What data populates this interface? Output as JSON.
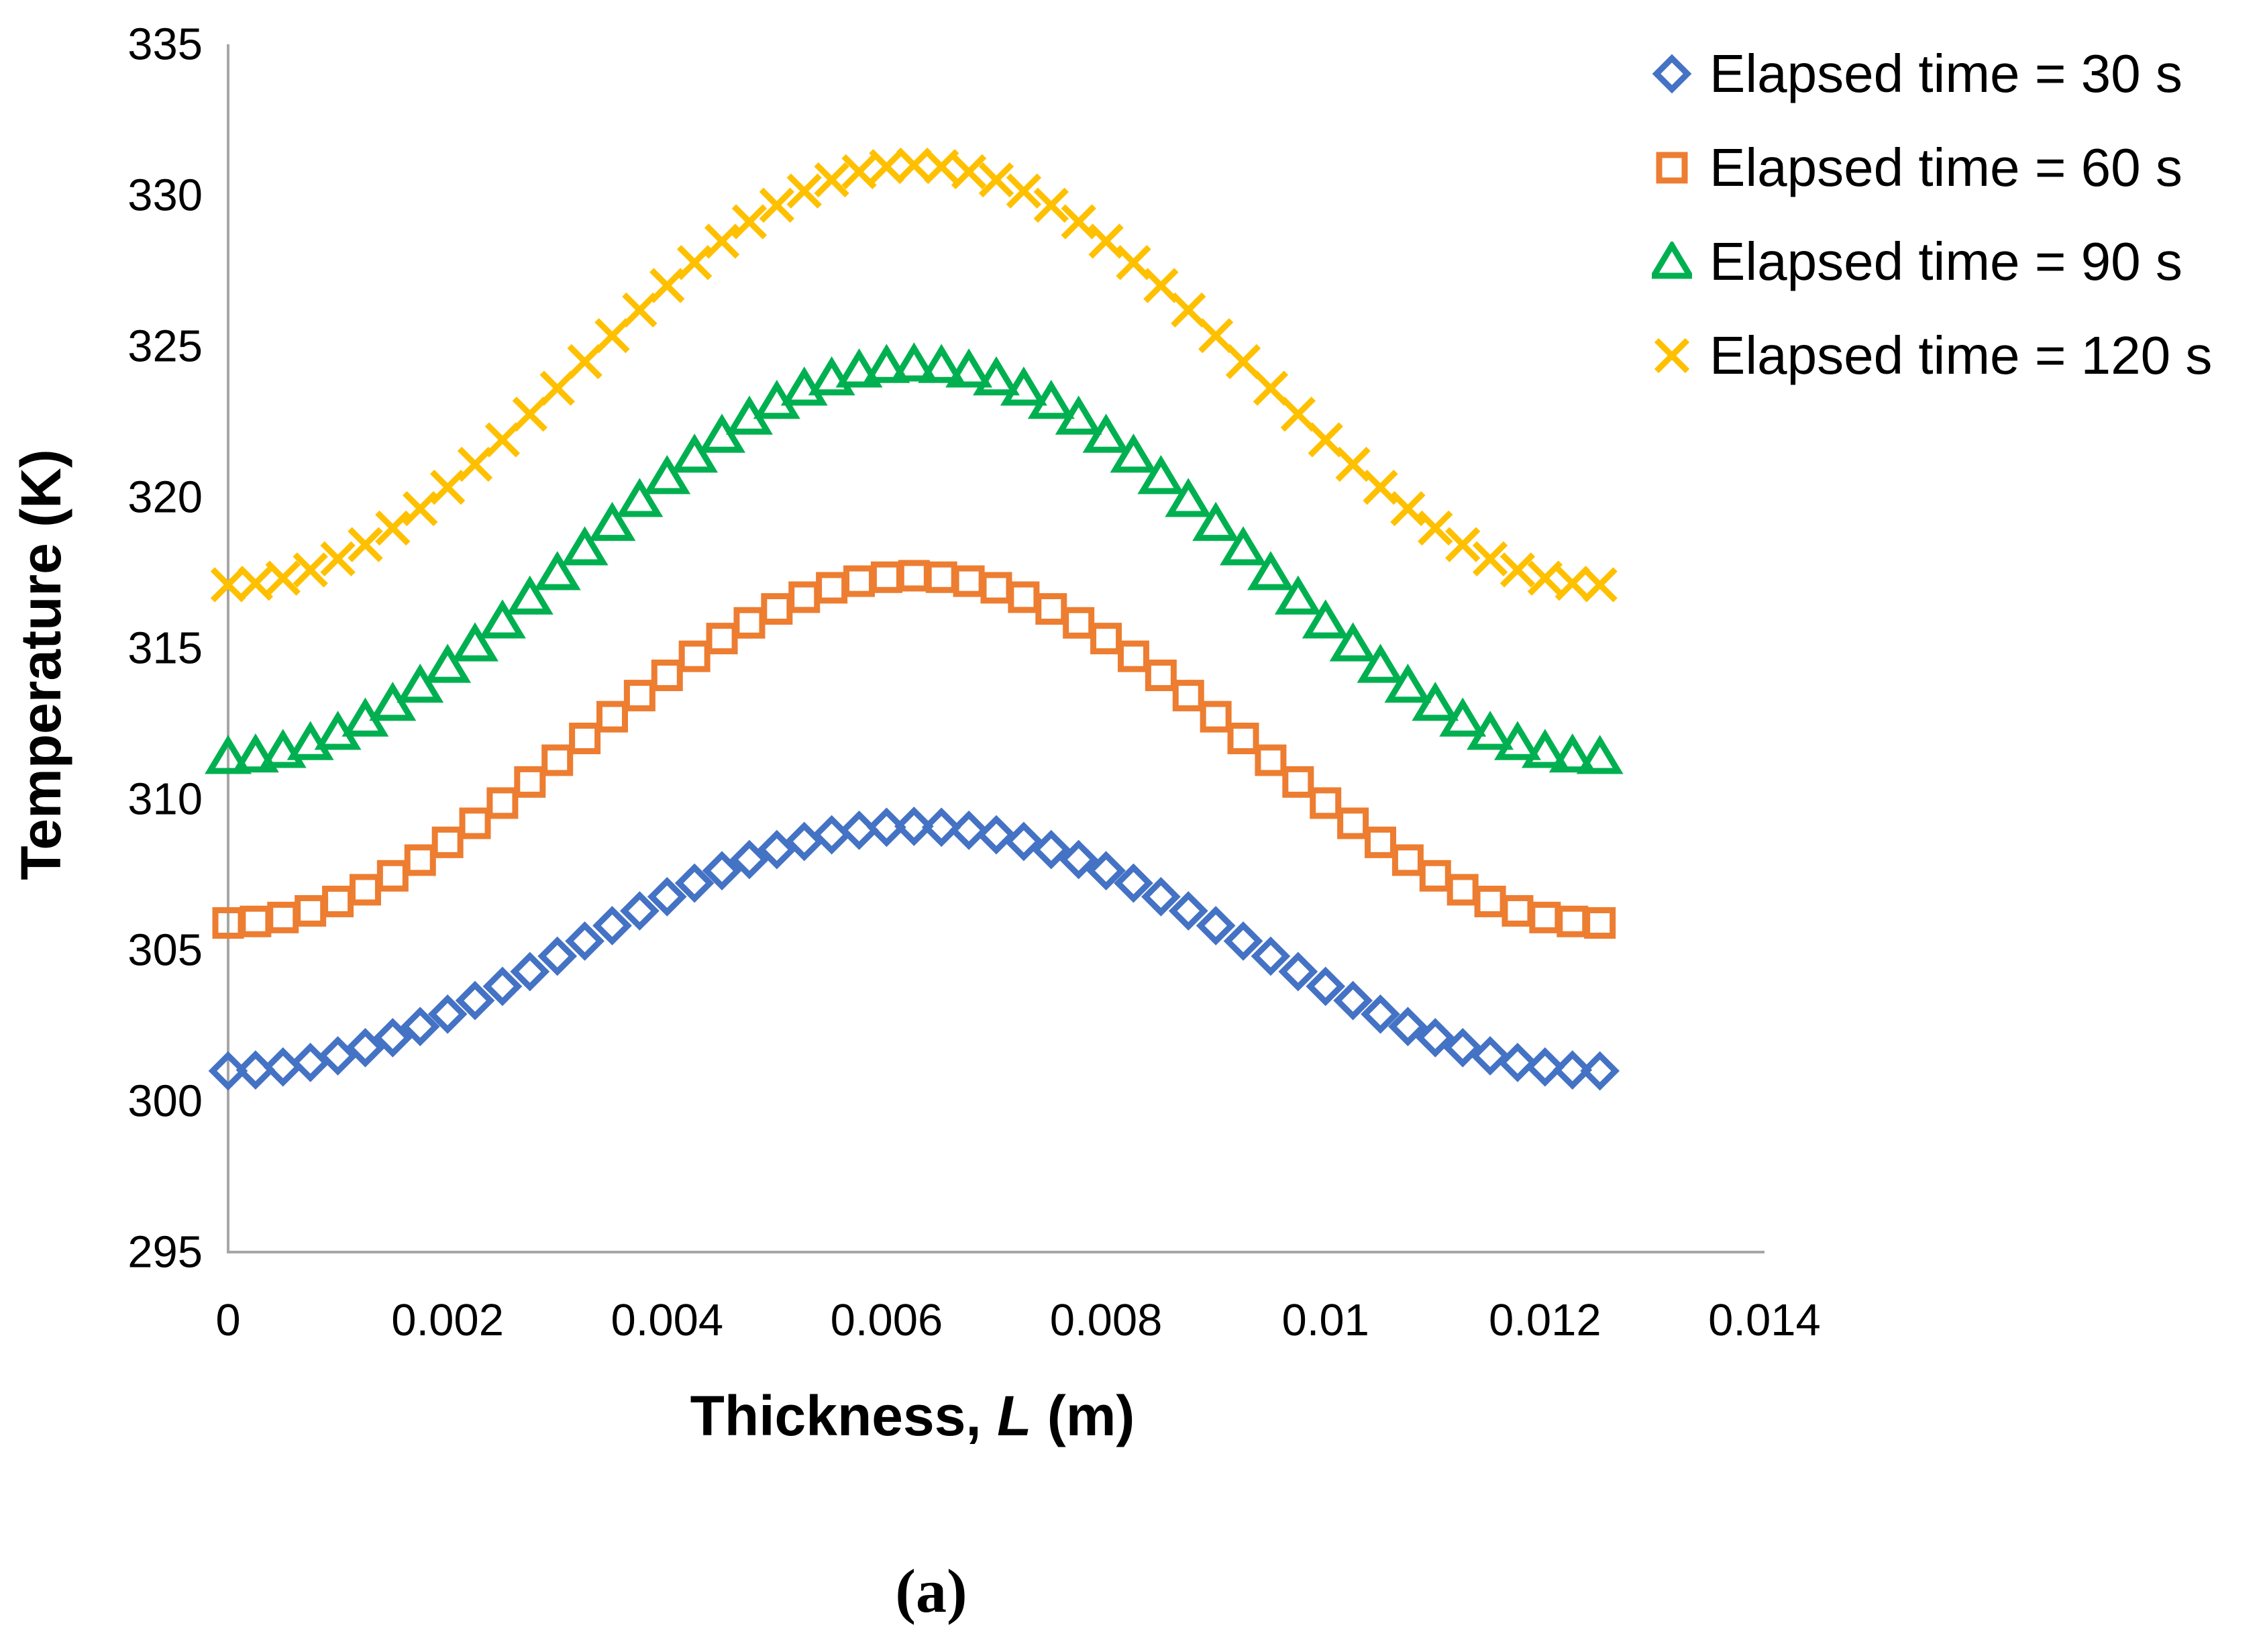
{
  "figure": {
    "caption": "(a)"
  },
  "chart_data": {
    "type": "scatter",
    "title": "",
    "xlabel": "Thickness, L (m)",
    "xlabel_parts": {
      "prefix": "Thickness, ",
      "italic": "L",
      "suffix": " (m)"
    },
    "ylabel": "Temperature (K)",
    "xlim": [
      0,
      0.014
    ],
    "ylim": [
      295,
      335
    ],
    "x_tick_step": 0.002,
    "y_tick_step": 5,
    "grid": false,
    "legend_position": "top-right",
    "axis_color": "#A6A6A6",
    "text_color": "#000000",
    "x": [
      0,
      0.00025,
      0.0005,
      0.00075,
      0.001,
      0.00125,
      0.0015,
      0.00175,
      0.002,
      0.00225,
      0.0025,
      0.00275,
      0.003,
      0.00325,
      0.0035,
      0.00375,
      0.004,
      0.00425,
      0.0045,
      0.00475,
      0.005,
      0.00525,
      0.0055,
      0.00575,
      0.006,
      0.00625,
      0.0065,
      0.00675,
      0.007,
      0.00725,
      0.0075,
      0.00775,
      0.008,
      0.00825,
      0.0085,
      0.00875,
      0.009,
      0.00925,
      0.0095,
      0.00975,
      0.01,
      0.01025,
      0.0105,
      0.01075,
      0.011,
      0.01125,
      0.0115,
      0.01175,
      0.012,
      0.01225,
      0.0125
    ],
    "series": [
      {
        "name": "Elapsed time = 30 s",
        "marker": "diamond",
        "color": "#4472C4",
        "values": [
          301.0,
          301.03,
          301.13,
          301.28,
          301.5,
          301.77,
          302.1,
          302.47,
          302.88,
          303.33,
          303.8,
          304.29,
          304.8,
          305.3,
          305.81,
          306.3,
          306.77,
          307.22,
          307.63,
          308.0,
          308.33,
          308.6,
          308.82,
          308.97,
          309.07,
          309.1,
          309.07,
          308.97,
          308.82,
          308.6,
          308.33,
          308.0,
          307.63,
          307.22,
          306.77,
          306.3,
          305.81,
          305.3,
          304.8,
          304.29,
          303.8,
          303.33,
          302.88,
          302.47,
          302.1,
          301.77,
          301.5,
          301.28,
          301.13,
          301.03,
          301.0
        ]
      },
      {
        "name": "Elapsed time = 60 s",
        "marker": "square",
        "color": "#ED7D31",
        "values": [
          305.9,
          305.95,
          306.08,
          306.3,
          306.61,
          307.0,
          307.46,
          307.98,
          308.57,
          309.2,
          309.87,
          310.57,
          311.29,
          312.01,
          312.73,
          313.43,
          314.1,
          314.73,
          315.32,
          315.84,
          316.3,
          316.69,
          317.0,
          317.22,
          317.35,
          317.4,
          317.35,
          317.22,
          317.0,
          316.69,
          316.3,
          315.84,
          315.32,
          314.73,
          314.1,
          313.43,
          312.73,
          312.01,
          311.29,
          310.57,
          309.87,
          309.2,
          308.57,
          307.98,
          307.46,
          307.0,
          306.61,
          306.3,
          306.08,
          305.95,
          305.9
        ]
      },
      {
        "name": "Elapsed time = 90 s",
        "marker": "triangle",
        "color": "#00B050",
        "values": [
          311.4,
          311.45,
          311.6,
          311.86,
          312.2,
          312.64,
          313.16,
          313.76,
          314.42,
          315.13,
          315.89,
          316.68,
          317.49,
          318.31,
          319.12,
          319.91,
          320.67,
          321.38,
          322.04,
          322.64,
          323.16,
          323.6,
          323.94,
          324.2,
          324.35,
          324.4,
          324.35,
          324.2,
          323.94,
          323.6,
          323.16,
          322.64,
          322.04,
          321.38,
          320.67,
          319.91,
          319.12,
          318.31,
          317.49,
          316.68,
          315.89,
          315.13,
          314.42,
          313.76,
          313.16,
          312.64,
          312.2,
          311.86,
          311.6,
          311.45,
          311.4
        ]
      },
      {
        "name": "Elapsed time = 120 s",
        "marker": "x",
        "color": "#FFC000",
        "values": [
          317.1,
          317.15,
          317.32,
          317.59,
          317.96,
          318.43,
          318.98,
          319.62,
          320.33,
          321.09,
          321.9,
          322.75,
          323.61,
          324.49,
          325.35,
          326.2,
          327.01,
          327.77,
          328.48,
          329.12,
          329.67,
          330.14,
          330.51,
          330.78,
          330.95,
          331.0,
          330.95,
          330.78,
          330.51,
          330.14,
          329.67,
          329.12,
          328.48,
          327.77,
          327.01,
          326.2,
          325.35,
          324.49,
          323.61,
          322.75,
          321.9,
          321.09,
          320.33,
          319.62,
          318.98,
          318.43,
          317.96,
          317.59,
          317.32,
          317.15,
          317.1
        ]
      }
    ]
  }
}
